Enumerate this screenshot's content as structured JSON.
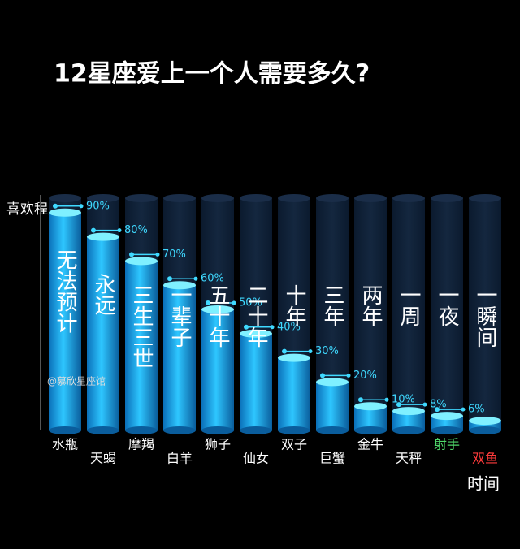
{
  "chart_data": {
    "type": "bar",
    "title": "12星座爱上一个人需要多久?",
    "y_label": "喜欢程度",
    "x_label": "时间",
    "watermark": "@慕欣星座馆",
    "categories": [
      "水瓶",
      "天蝎",
      "摩羯",
      "白羊",
      "狮子",
      "仙女",
      "双子",
      "巨蟹",
      "金牛",
      "天秤",
      "射手",
      "双鱼"
    ],
    "category_colors": [
      "#ffffff",
      "#ffffff",
      "#ffffff",
      "#ffffff",
      "#ffffff",
      "#ffffff",
      "#ffffff",
      "#ffffff",
      "#ffffff",
      "#ffffff",
      "#4fd66a",
      "#ff3b3b"
    ],
    "bar_texts": [
      "无法预计",
      "永远",
      "三生三世",
      "一辈子",
      "五十年",
      "二十年",
      "十年",
      "三年",
      "两年",
      "一周",
      "一夜",
      "一瞬间"
    ],
    "values": [
      90,
      80,
      70,
      60,
      50,
      40,
      30,
      20,
      10,
      8,
      6,
      4
    ],
    "value_labels": [
      "90%",
      "80%",
      "70%",
      "60%",
      "50%",
      "40%",
      "30%",
      "20%",
      "10%",
      "8%",
      "6%",
      null
    ],
    "color": "#1fb4f0",
    "ylim": [
      0,
      100
    ]
  }
}
